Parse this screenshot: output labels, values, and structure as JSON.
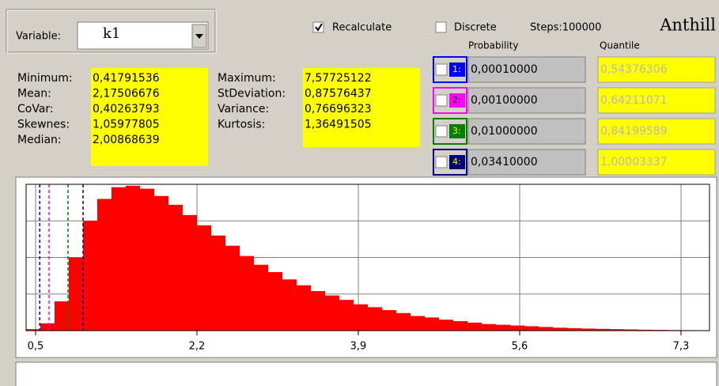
{
  "variable": {
    "label": "Variable:",
    "value": "k1"
  },
  "options": {
    "recalculate": {
      "label": "Recalculate",
      "checked": true
    },
    "discrete": {
      "label": "Discrete",
      "checked": false
    },
    "steps": "Steps:100000"
  },
  "app_title": "Anthill",
  "stats": {
    "left": [
      {
        "label": "Minimum:",
        "value": "0,41791536"
      },
      {
        "label": "Mean:",
        "value": "2,17506676"
      },
      {
        "label": "CoVar:",
        "value": "0,40263793"
      },
      {
        "label": "Skewnes:",
        "value": "1,05977805"
      },
      {
        "label": "Median:",
        "value": "2,00868639"
      }
    ],
    "right": [
      {
        "label": "Maximum:",
        "value": "7,57725122"
      },
      {
        "label": "StDeviation:",
        "value": "0,87576437"
      },
      {
        "label": "Variance:",
        "value": "0,76696323"
      },
      {
        "label": "Kurtosis:",
        "value": "1,36491505"
      }
    ]
  },
  "quantiles": {
    "headers": {
      "probability": "Probability",
      "quantile": "Quantile"
    },
    "rows": [
      {
        "index": "1:",
        "color": "#0000ff",
        "probability": "0,00010000",
        "quantile": "0,54376306"
      },
      {
        "index": "2:",
        "color": "#ff00ff",
        "probability": "0,00100000",
        "quantile": "0,64211071"
      },
      {
        "index": "3:",
        "color": "#008000",
        "probability": "0,01000000",
        "quantile": "0,84199589"
      },
      {
        "index": "4:",
        "color": "#000080",
        "probability": "0,03410000",
        "quantile": "1,00003337"
      }
    ]
  },
  "chart_data": {
    "type": "histogram",
    "color": "#ff0000",
    "grid": true,
    "bins": [
      0.4,
      0.55,
      0.7,
      0.85,
      1,
      1.15,
      1.3,
      1.45,
      1.6,
      1.75,
      1.9,
      2.05,
      2.2,
      2.35,
      2.5,
      2.65,
      2.8,
      2.95,
      3.1,
      3.25,
      3.4,
      3.55,
      3.7,
      3.85,
      4,
      4.15,
      4.3,
      4.45,
      4.6,
      4.75,
      4.9,
      5.05,
      5.2,
      5.35,
      5.5,
      5.65,
      5.8,
      5.95,
      6.1,
      6.25,
      6.4,
      6.55,
      6.7,
      6.85,
      7,
      7.15,
      7.3,
      7.45,
      7.6
    ],
    "counts": [
      1,
      5,
      20,
      50,
      75,
      90,
      98,
      99,
      97,
      92,
      86,
      79,
      72,
      65,
      58,
      51,
      45,
      40,
      35,
      31,
      27,
      24,
      21,
      18,
      16,
      14,
      12,
      10,
      9,
      7.5,
      6.5,
      5.5,
      4.5,
      4,
      3.5,
      3,
      2.5,
      2,
      1.7,
      1.4,
      1.2,
      1,
      0.8,
      0.6,
      0.5,
      0.4,
      0.3,
      0.2
    ],
    "xlim": [
      0.4,
      7.6
    ],
    "ylim": [
      0,
      100
    ],
    "xticks": [
      {
        "value": 0.5,
        "label": "0,5"
      },
      {
        "value": 2.2,
        "label": "2,2"
      },
      {
        "value": 3.9,
        "label": "3,9"
      },
      {
        "value": 5.6,
        "label": "5,6"
      },
      {
        "value": 7.3,
        "label": "7,3"
      }
    ]
  }
}
